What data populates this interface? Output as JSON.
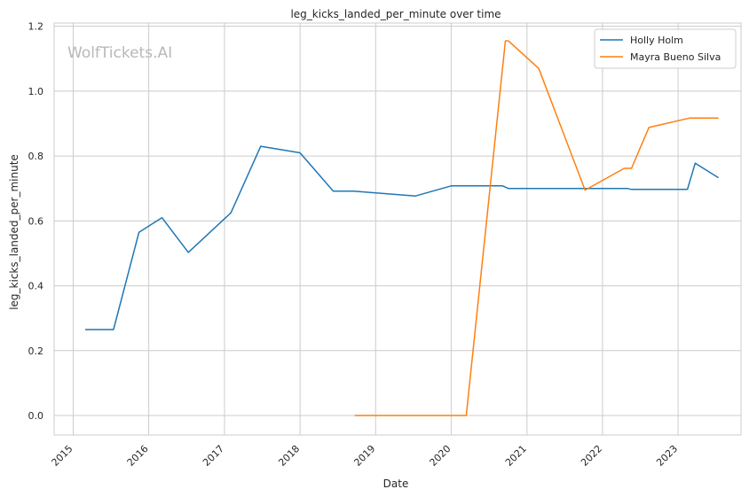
{
  "watermark": "WolfTickets.AI",
  "chart_data": {
    "type": "line",
    "title": "leg_kicks_landed_per_minute over time",
    "xlabel": "Date",
    "ylabel": "leg_kicks_landed_per_minute",
    "x_ticks": [
      "2015",
      "2016",
      "2017",
      "2018",
      "2019",
      "2020",
      "2021",
      "2022",
      "2023"
    ],
    "y_ticks": [
      "0.0",
      "0.2",
      "0.4",
      "0.6",
      "0.8",
      "1.0",
      "1.2"
    ],
    "xlim": [
      "2014-10-01",
      "2023-11-01"
    ],
    "ylim": [
      -0.06,
      1.21
    ],
    "grid": true,
    "legend_position": "top-right",
    "series": [
      {
        "name": "Holly Holm",
        "color": "#1f77b4",
        "points": [
          [
            "2015-02-28",
            0.265
          ],
          [
            "2015-07-15",
            0.265
          ],
          [
            "2015-11-15",
            0.565
          ],
          [
            "2016-03-05",
            0.61
          ],
          [
            "2016-07-10",
            0.503
          ],
          [
            "2017-02-01",
            0.625
          ],
          [
            "2017-06-25",
            0.83
          ],
          [
            "2018-01-01",
            0.81
          ],
          [
            "2018-06-10",
            0.692
          ],
          [
            "2018-09-15",
            0.692
          ],
          [
            "2019-07-13",
            0.677
          ],
          [
            "2020-01-01",
            0.708
          ],
          [
            "2020-09-05",
            0.708
          ],
          [
            "2020-10-03",
            0.7
          ],
          [
            "2022-05-01",
            0.7
          ],
          [
            "2022-05-21",
            0.697
          ],
          [
            "2023-02-15",
            0.697
          ],
          [
            "2023-03-25",
            0.778
          ],
          [
            "2023-07-15",
            0.733
          ]
        ]
      },
      {
        "name": "Mayra Bueno Silva",
        "color": "#ff7f0e",
        "points": [
          [
            "2018-09-22",
            0.0
          ],
          [
            "2020-03-14",
            0.0
          ],
          [
            "2020-09-19",
            1.155
          ],
          [
            "2020-10-03",
            1.155
          ],
          [
            "2021-02-27",
            1.07
          ],
          [
            "2021-10-09",
            0.695
          ],
          [
            "2022-04-16",
            0.762
          ],
          [
            "2022-05-21",
            0.762
          ],
          [
            "2022-08-13",
            0.888
          ],
          [
            "2023-02-25",
            0.917
          ],
          [
            "2023-07-15",
            0.917
          ]
        ]
      }
    ]
  }
}
